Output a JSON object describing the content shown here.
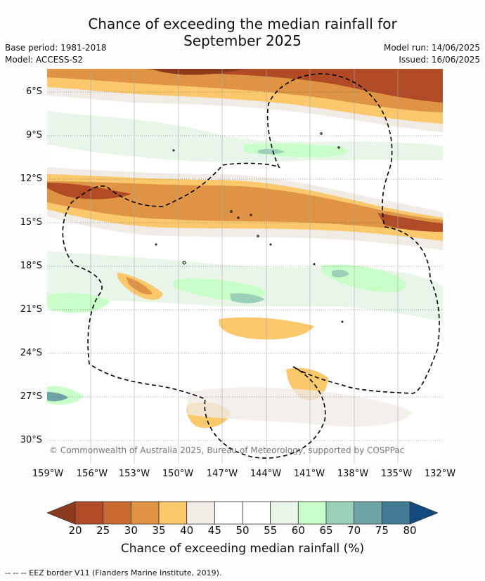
{
  "title_line1": "Chance of exceeding the median rainfall for",
  "title_line2": "September 2025",
  "base_period": "Base period: 1981-2018",
  "model": "Model: ACCESS-S2",
  "model_run": "Model run: 14/06/2025",
  "issued": "Issued: 16/06/2025",
  "lat_labels": [
    "6°S",
    "9°S",
    "12°S",
    "15°S",
    "18°S",
    "21°S",
    "24°S",
    "27°S",
    "30°S"
  ],
  "lon_labels": [
    "159°W",
    "156°W",
    "153°W",
    "150°W",
    "147°W",
    "144°W",
    "141°W",
    "138°W",
    "135°W",
    "132°W"
  ],
  "copyright": "© Commonwealth of Australia 2025, Bureau of Meteorology, supported by COSPPac",
  "colorbar": {
    "ticks": [
      "20",
      "25",
      "30",
      "35",
      "40",
      "45",
      "50",
      "55",
      "60",
      "65",
      "70",
      "75",
      "80"
    ],
    "colors": [
      "#8b3a1c",
      "#b04b26",
      "#cc6a33",
      "#df9345",
      "#fbc86c",
      "#f0ebe5",
      "#ffffff",
      "#ffffff",
      "#e9f5e9",
      "#c9ffc9",
      "#9bd0b8",
      "#6fa4a6",
      "#417b96",
      "#124a80"
    ],
    "label": "Chance of exceeding median rainfall (%)"
  },
  "eez_legend": "--  --  -- EEZ border V11 (Flanders Marine Institute, 2019)."
}
